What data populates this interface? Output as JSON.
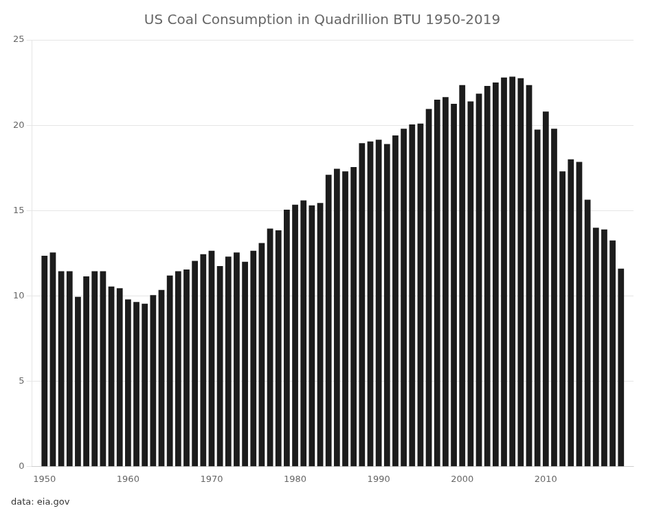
{
  "chart_data": {
    "type": "bar",
    "title": "US Coal Consumption in Quadrillion BTU 1950-2019",
    "annotation": "data: eia.gov",
    "x": [
      1950,
      1951,
      1952,
      1953,
      1954,
      1955,
      1956,
      1957,
      1958,
      1959,
      1960,
      1961,
      1962,
      1963,
      1964,
      1965,
      1966,
      1967,
      1968,
      1969,
      1970,
      1971,
      1972,
      1973,
      1974,
      1975,
      1976,
      1977,
      1978,
      1979,
      1980,
      1981,
      1982,
      1983,
      1984,
      1985,
      1986,
      1987,
      1988,
      1989,
      1990,
      1991,
      1992,
      1993,
      1994,
      1995,
      1996,
      1997,
      1998,
      1999,
      2000,
      2001,
      2002,
      2003,
      2004,
      2005,
      2006,
      2007,
      2008,
      2009,
      2010,
      2011,
      2012,
      2013,
      2014,
      2015,
      2016,
      2017,
      2018,
      2019
    ],
    "values": [
      12.35,
      12.55,
      11.45,
      11.45,
      9.95,
      11.15,
      11.45,
      11.45,
      10.55,
      10.45,
      9.8,
      9.65,
      9.55,
      10.05,
      10.35,
      11.2,
      11.45,
      11.55,
      12.05,
      12.45,
      12.65,
      11.75,
      12.3,
      12.55,
      12.0,
      12.65,
      13.1,
      13.95,
      13.85,
      15.05,
      15.35,
      15.6,
      15.3,
      15.45,
      17.1,
      17.45,
      17.3,
      17.55,
      18.95,
      19.05,
      19.15,
      18.9,
      19.4,
      19.8,
      20.05,
      20.1,
      20.95,
      21.5,
      21.65,
      21.25,
      22.35,
      21.4,
      21.85,
      22.3,
      22.5,
      22.8,
      22.85,
      22.75,
      22.35,
      19.74,
      20.8,
      19.8,
      17.3,
      18.0,
      17.85,
      15.64,
      14.0,
      13.9,
      13.25,
      11.6
    ],
    "color": "#1c1c1c",
    "xlim": [
      1948.5,
      2020.5
    ],
    "xticks": [
      1950,
      1960,
      1970,
      1980,
      1990,
      2000,
      2010
    ],
    "ylim": [
      0,
      25
    ],
    "yticks": [
      0,
      5,
      10,
      15,
      20,
      25
    ],
    "grid": true
  }
}
